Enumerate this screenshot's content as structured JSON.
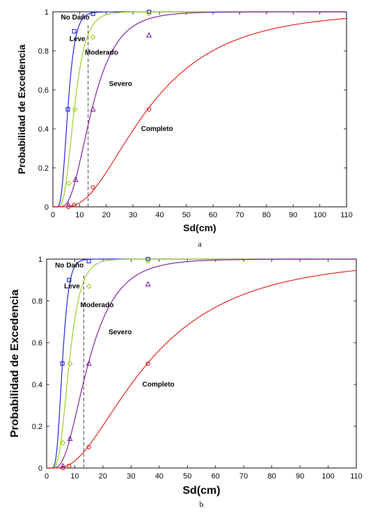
{
  "chart_data": [
    {
      "type": "line",
      "panel_label": "a",
      "xlabel": "Sd(cm)",
      "ylabel": "Probabilidad de Excedencia",
      "xlim": [
        0,
        110
      ],
      "ylim": [
        0,
        1
      ],
      "xticks": [
        0,
        10,
        20,
        30,
        40,
        50,
        60,
        70,
        80,
        90,
        100,
        110
      ],
      "yticks": [
        0,
        0.2,
        0.4,
        0.6,
        0.8,
        1
      ],
      "threshold_x": 13.2,
      "series": [
        {
          "name": "No Daño",
          "color": "#1f1fd6",
          "marker": "square",
          "median": 5.6,
          "beta": 0.38,
          "points": [
            [
              5.6,
              0.5
            ],
            [
              8.0,
              0.9
            ],
            [
              15.0,
              0.99
            ],
            [
              36.0,
              1.0
            ]
          ]
        },
        {
          "name": "Leve",
          "color": "#9acd1e",
          "marker": "diamond",
          "median": 8.0,
          "beta": 0.42,
          "points": [
            [
              6.0,
              0.12
            ],
            [
              8.3,
              0.5
            ],
            [
              15.0,
              0.87
            ],
            [
              36.0,
              0.99
            ]
          ]
        },
        {
          "name": "Moderado",
          "color": "#7f1f9f",
          "marker": "triangle",
          "median": 14.6,
          "beta": 0.5,
          "points": [
            [
              5.8,
              0.01
            ],
            [
              8.5,
              0.14
            ],
            [
              15.0,
              0.5
            ],
            [
              36.0,
              0.88
            ]
          ]
        },
        {
          "name": "Completo",
          "color": "#e01f1f",
          "marker": "circle",
          "median": 35.5,
          "beta": 0.62,
          "points": [
            [
              5.8,
              0.0
            ],
            [
              8.0,
              0.01
            ],
            [
              15.0,
              0.1
            ],
            [
              36.0,
              0.5
            ]
          ]
        }
      ],
      "labels": [
        {
          "text": "No Daño",
          "x": 3.0,
          "y": 0.96
        },
        {
          "text": "Leve",
          "x": 6.2,
          "y": 0.85
        },
        {
          "text": "Moderado",
          "x": 12.0,
          "y": 0.78
        },
        {
          "text": "Severo",
          "x": 21.0,
          "y": 0.62
        },
        {
          "text": "Completo",
          "x": 33.0,
          "y": 0.39
        }
      ]
    },
    {
      "type": "line",
      "panel_label": "b",
      "xlabel": "Sd(cm)",
      "ylabel": "Probabilidad de Excedencia",
      "xlim": [
        0,
        110
      ],
      "ylim": [
        0,
        1
      ],
      "xticks": [
        0,
        10,
        20,
        30,
        40,
        50,
        60,
        70,
        80,
        90,
        100,
        110
      ],
      "yticks": [
        0,
        0.2,
        0.4,
        0.6,
        0.8,
        1
      ],
      "threshold_x": 13.2,
      "series": [
        {
          "name": "No Daño",
          "color": "#1f1fd6",
          "marker": "square",
          "median": 5.6,
          "beta": 0.32,
          "points": [
            [
              5.6,
              0.5
            ],
            [
              8.0,
              0.9
            ],
            [
              15.0,
              0.99
            ],
            [
              36.0,
              1.0
            ]
          ]
        },
        {
          "name": "Leve",
          "color": "#9acd1e",
          "marker": "diamond",
          "median": 8.0,
          "beta": 0.4,
          "points": [
            [
              5.8,
              0.12
            ],
            [
              8.3,
              0.5
            ],
            [
              15.0,
              0.87
            ],
            [
              36.0,
              0.99
            ]
          ]
        },
        {
          "name": "Moderado",
          "color": "#7f1f9f",
          "marker": "triangle",
          "median": 14.8,
          "beta": 0.54,
          "points": [
            [
              5.8,
              0.01
            ],
            [
              8.3,
              0.14
            ],
            [
              15.0,
              0.5
            ],
            [
              36.0,
              0.88
            ]
          ]
        },
        {
          "name": "Completo",
          "color": "#e01f1f",
          "marker": "circle",
          "median": 35.8,
          "beta": 0.7,
          "points": [
            [
              5.8,
              0.0
            ],
            [
              8.0,
              0.01
            ],
            [
              15.0,
              0.1
            ],
            [
              36.0,
              0.5
            ]
          ]
        }
      ],
      "labels": [
        {
          "text": "No Daño",
          "x": 3.0,
          "y": 0.96
        },
        {
          "text": "Leve",
          "x": 6.2,
          "y": 0.86
        },
        {
          "text": "Moderado",
          "x": 12.0,
          "y": 0.77
        },
        {
          "text": "Severo",
          "x": 22.0,
          "y": 0.64
        },
        {
          "text": "Completo",
          "x": 34.0,
          "y": 0.39
        }
      ]
    }
  ]
}
